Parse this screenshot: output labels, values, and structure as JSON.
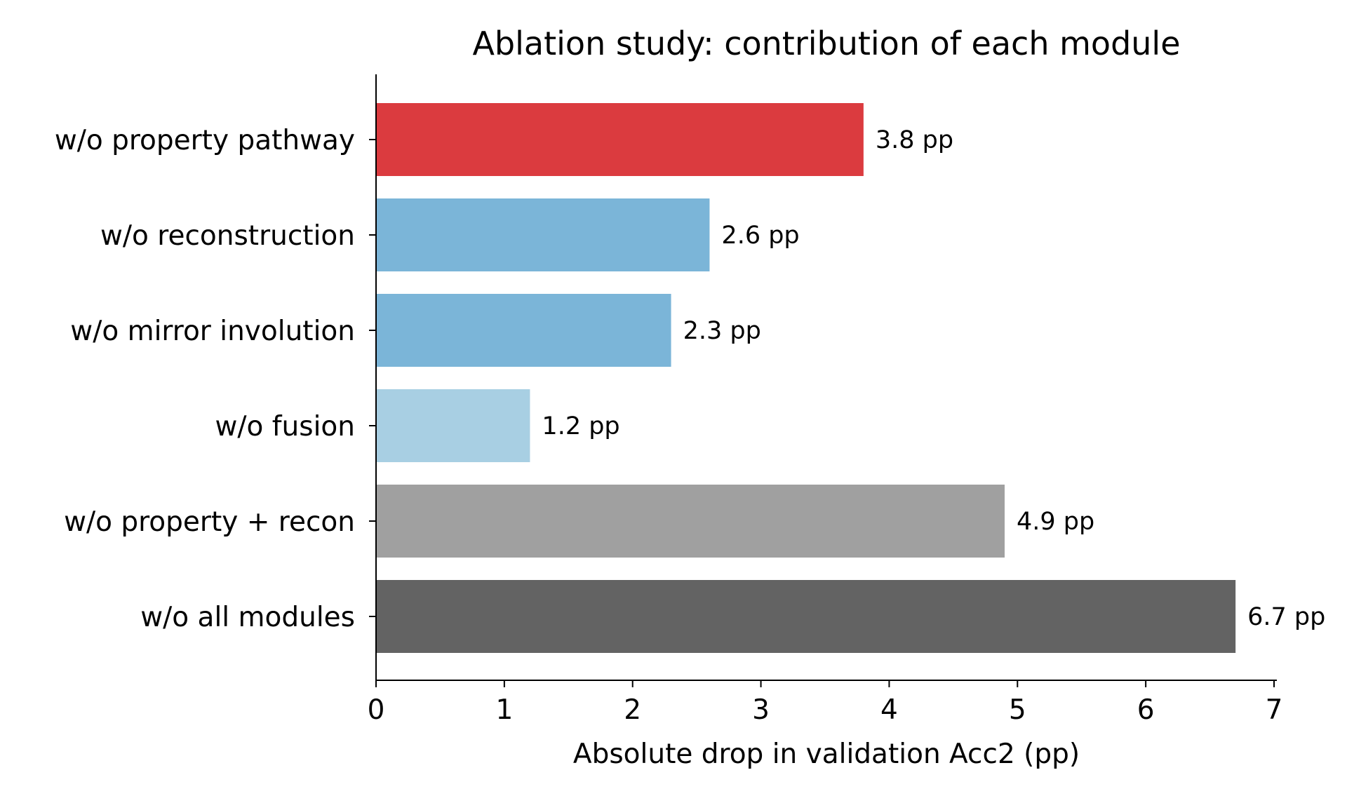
{
  "chart_data": {
    "type": "bar",
    "orientation": "horizontal",
    "title": "Ablation study: contribution of each module",
    "xlabel": "Absolute drop in validation Acc2 (pp)",
    "ylabel": "",
    "xlim": [
      0,
      7
    ],
    "xticks": [
      "0",
      "1",
      "2",
      "3",
      "4",
      "5",
      "6",
      "7"
    ],
    "grid": false,
    "categories": [
      "w/o property pathway",
      "w/o reconstruction",
      "w/o mirror involution",
      "w/o fusion",
      "w/o property + recon",
      "w/o all modules"
    ],
    "values": [
      3.8,
      2.6,
      2.3,
      1.2,
      4.9,
      6.7
    ],
    "value_labels": [
      "3.8 pp",
      "2.6 pp",
      "2.3 pp",
      "1.2 pp",
      "4.9 pp",
      "6.7 pp"
    ],
    "colors": [
      "#db3b3f",
      "#7bb5d8",
      "#7bb5d8",
      "#a8cfe3",
      "#a0a0a0",
      "#636363"
    ]
  }
}
